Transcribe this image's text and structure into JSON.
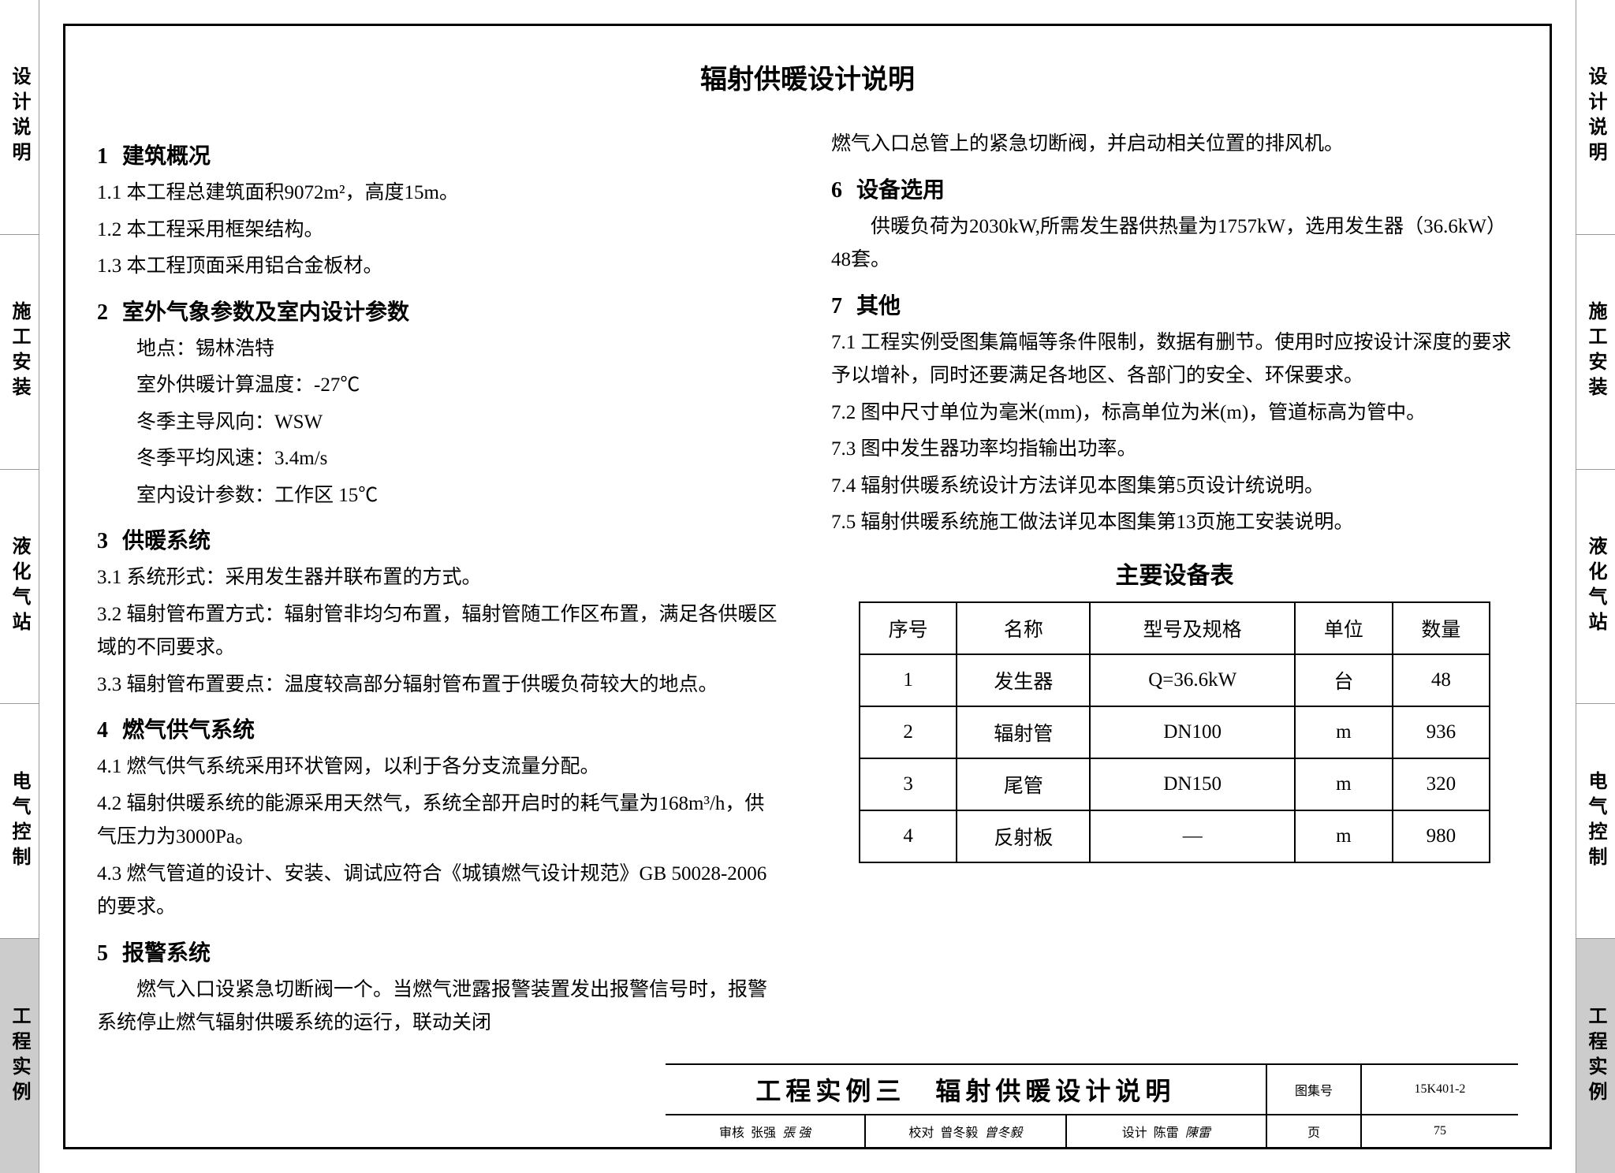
{
  "tabs": {
    "left": [
      "设计说明",
      "施工安装",
      "液化气站",
      "电气控制",
      "工程实例"
    ],
    "right": [
      "设计说明",
      "施工安装",
      "液化气站",
      "电气控制",
      "工程实例"
    ],
    "active_index": 4
  },
  "page_title": "辐射供暖设计说明",
  "sections_left": [
    {
      "num": "1",
      "title": "建筑概况",
      "lines": [
        "1.1 本工程总建筑面积9072m²，高度15m。",
        "1.2 本工程采用框架结构。",
        "1.3 本工程顶面采用铝合金板材。"
      ]
    },
    {
      "num": "2",
      "title": "室外气象参数及室内设计参数",
      "lines": [
        "地点：锡林浩特",
        "室外供暖计算温度：-27℃",
        "冬季主导风向：WSW",
        "冬季平均风速：3.4m/s",
        "室内设计参数：工作区 15℃"
      ],
      "indent": true
    },
    {
      "num": "3",
      "title": "供暖系统",
      "lines": [
        "3.1 系统形式：采用发生器并联布置的方式。",
        "3.2 辐射管布置方式：辐射管非均匀布置，辐射管随工作区布置，满足各供暖区域的不同要求。",
        "3.3 辐射管布置要点：温度较高部分辐射管布置于供暖负荷较大的地点。"
      ]
    },
    {
      "num": "4",
      "title": "燃气供气系统",
      "lines": [
        "4.1 燃气供气系统采用环状管网，以利于各分支流量分配。",
        "4.2 辐射供暖系统的能源采用天然气，系统全部开启时的耗气量为168m³/h，供气压力为3000Pa。",
        "4.3 燃气管道的设计、安装、调试应符合《城镇燃气设计规范》GB 50028-2006的要求。"
      ]
    },
    {
      "num": "5",
      "title": "报警系统",
      "lines": [
        "　　燃气入口设紧急切断阀一个。当燃气泄露报警装置发出报警信号时，报警系统停止燃气辐射供暖系统的运行，联动关闭"
      ]
    }
  ],
  "sections_right_intro": "燃气入口总管上的紧急切断阀，并启动相关位置的排风机。",
  "sections_right": [
    {
      "num": "6",
      "title": "设备选用",
      "lines": [
        "　　供暖负荷为2030kW,所需发生器供热量为1757kW，选用发生器（36.6kW）48套。"
      ]
    },
    {
      "num": "7",
      "title": "其他",
      "lines": [
        "7.1 工程实例受图集篇幅等条件限制，数据有删节。使用时应按设计深度的要求予以增补，同时还要满足各地区、各部门的安全、环保要求。",
        "7.2 图中尺寸单位为毫米(mm)，标高单位为米(m)，管道标高为管中。",
        "7.3 图中发生器功率均指输出功率。",
        "7.4 辐射供暖系统设计方法详见本图集第5页设计统说明。",
        "7.5 辐射供暖系统施工做法详见本图集第13页施工安装说明。"
      ]
    }
  ],
  "equipment_table": {
    "title": "主要设备表",
    "columns": [
      "序号",
      "名称",
      "型号及规格",
      "单位",
      "数量"
    ],
    "rows": [
      [
        "1",
        "发生器",
        "Q=36.6kW",
        "台",
        "48"
      ],
      [
        "2",
        "辐射管",
        "DN100",
        "m",
        "936"
      ],
      [
        "3",
        "尾管",
        "DN150",
        "m",
        "320"
      ],
      [
        "4",
        "反射板",
        "—",
        "m",
        "980"
      ]
    ]
  },
  "title_block": {
    "drawing_title": "工程实例三　辐射供暖设计说明",
    "atlas_label": "图集号",
    "atlas_no": "15K401-2",
    "page_label": "页",
    "page_no": "75",
    "approvals": [
      {
        "role": "审核",
        "name": "张强",
        "sig": "張 強"
      },
      {
        "role": "校对",
        "name": "曾冬毅",
        "sig": "曾冬毅"
      },
      {
        "role": "设计",
        "name": "陈雷",
        "sig": "陳雷"
      }
    ]
  }
}
